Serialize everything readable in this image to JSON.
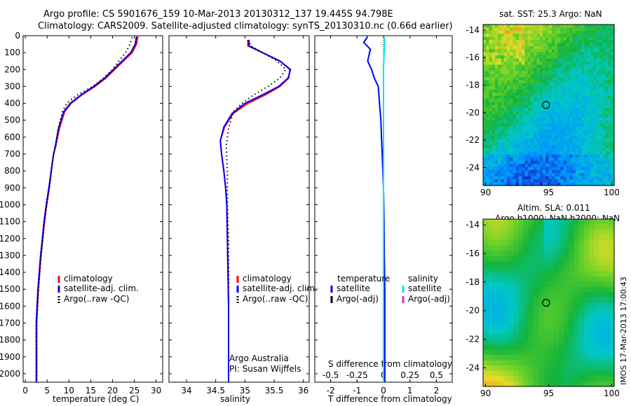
{
  "header": {
    "title_line1": "Argo profile: CS 5901676_159 10-Mar-2013 20130312_137 19.445S 94.798E",
    "title_line2": "Climatology: CARS2009. Satellite-adjusted climatology: synTS_20130310.nc (0.66d earlier)"
  },
  "side_stamp": "IMOS 17-Mar-2013 17:00:43",
  "chart_data": [
    {
      "id": "temperature",
      "type": "line",
      "xlabel": "temperature (deg C)",
      "ylabel": "",
      "xlim": [
        -0.5,
        31.5
      ],
      "ylim": [
        0,
        2050
      ],
      "y_inverted": true,
      "xticks": [
        0,
        5,
        10,
        15,
        20,
        25,
        30
      ],
      "yticks": [
        0,
        100,
        200,
        300,
        400,
        500,
        600,
        700,
        800,
        900,
        1000,
        1100,
        1200,
        1300,
        1400,
        1500,
        1600,
        1700,
        1800,
        1900,
        2000
      ],
      "legend": [
        "climatology",
        "satellite-adj. clim.",
        "Argo(..raw -QC)"
      ],
      "series": [
        {
          "name": "climatology",
          "color": "#ff0000",
          "style": "solid",
          "x": [
            25.8,
            25.5,
            24.5,
            22.5,
            20.5,
            18.5,
            16.0,
            13.0,
            10.5,
            9.0,
            7.8,
            7.0,
            6.5,
            6.2,
            5.5,
            4.9,
            4.4,
            4.0,
            3.6,
            3.3,
            3.0,
            2.8,
            2.6,
            2.6
          ],
          "y": [
            5,
            50,
            100,
            150,
            200,
            250,
            300,
            350,
            400,
            450,
            550,
            650,
            700,
            750,
            900,
            1000,
            1100,
            1200,
            1300,
            1400,
            1500,
            1600,
            1700,
            2050
          ]
        },
        {
          "name": "satellite-adj. clim.",
          "color": "#0000ff",
          "style": "solid",
          "x": [
            25.5,
            25.2,
            24.2,
            22.2,
            20.2,
            18.2,
            15.7,
            12.8,
            10.3,
            8.8,
            7.6,
            6.9,
            6.5,
            6.2,
            5.4,
            4.8,
            4.3,
            3.9,
            3.5,
            3.2,
            2.9,
            2.7,
            2.5,
            2.5
          ],
          "y": [
            5,
            50,
            100,
            150,
            200,
            250,
            300,
            350,
            400,
            450,
            550,
            650,
            700,
            750,
            900,
            1000,
            1100,
            1200,
            1300,
            1400,
            1500,
            1600,
            1700,
            2050
          ]
        },
        {
          "name": "Argo(..raw -QC)",
          "color": "#000000",
          "style": "dotted",
          "x": [
            24.5,
            24.0,
            23.0,
            21.5,
            20.0,
            18.0,
            15.5,
            12.0,
            9.5,
            8.5,
            7.5,
            7.0,
            6.5,
            6.2,
            5.5,
            4.9,
            4.4,
            4.0,
            3.6,
            3.3,
            3.0,
            2.8,
            2.6,
            2.6
          ],
          "y": [
            10,
            50,
            100,
            150,
            200,
            250,
            300,
            350,
            400,
            450,
            550,
            650,
            700,
            750,
            900,
            1000,
            1100,
            1200,
            1300,
            1400,
            1500,
            1600,
            1700,
            2050
          ]
        }
      ]
    },
    {
      "id": "salinity",
      "type": "line",
      "xlabel": "salinity",
      "ylabel": "",
      "xlim": [
        33.7,
        36.1
      ],
      "ylim": [
        0,
        2050
      ],
      "y_inverted": true,
      "xticks": [
        34,
        34.5,
        35,
        35.5,
        36
      ],
      "legend": [
        "climatology",
        "satellite-adj. clim.",
        "Argo(..raw -QC)"
      ],
      "note_lines": [
        "Argo Australia",
        "PI: Susan Wijffels"
      ],
      "series": [
        {
          "name": "climatology",
          "color": "#ff0000",
          "style": "solid",
          "x": [
            35.05,
            35.05,
            35.3,
            35.6,
            35.77,
            35.75,
            35.6,
            35.35,
            35.05,
            34.8,
            34.65,
            34.58,
            34.6,
            34.64,
            34.67,
            34.69,
            34.7,
            34.71,
            34.72,
            34.72,
            34.72
          ],
          "y": [
            25,
            60,
            100,
            150,
            200,
            250,
            300,
            350,
            400,
            460,
            540,
            620,
            700,
            800,
            900,
            1000,
            1200,
            1400,
            1600,
            1800,
            2050
          ]
        },
        {
          "name": "satellite-adj. clim.",
          "color": "#0000ff",
          "style": "solid",
          "x": [
            35.07,
            35.07,
            35.3,
            35.6,
            35.78,
            35.74,
            35.58,
            35.3,
            35.0,
            34.78,
            34.64,
            34.58,
            34.6,
            34.64,
            34.67,
            34.69,
            34.7,
            34.71,
            34.72,
            34.72,
            34.72
          ],
          "y": [
            25,
            60,
            100,
            150,
            200,
            250,
            300,
            350,
            400,
            460,
            540,
            620,
            700,
            800,
            900,
            1000,
            1200,
            1400,
            1600,
            1800,
            2050
          ]
        },
        {
          "name": "Argo(..raw -QC)",
          "color": "#000000",
          "style": "dotted",
          "x": [
            35.05,
            35.1,
            35.3,
            35.55,
            35.7,
            35.6,
            35.4,
            35.15,
            34.95,
            34.8,
            34.72,
            34.68,
            34.7,
            34.7,
            34.72,
            34.72,
            34.72
          ],
          "y": [
            25,
            60,
            100,
            150,
            200,
            250,
            300,
            350,
            400,
            450,
            550,
            650,
            800,
            1000,
            1200,
            1400,
            1500
          ]
        }
      ]
    },
    {
      "id": "difference",
      "type": "line",
      "xlabel": "T difference from climatology",
      "x2label": "S difference from climatology",
      "ylabel": "",
      "xlim": [
        -2.6,
        2.6
      ],
      "x2lim": [
        -0.65,
        0.65
      ],
      "ylim": [
        0,
        2050
      ],
      "y_inverted": true,
      "xticks": [
        -2,
        -1,
        0,
        1,
        2
      ],
      "x2ticks": [
        -0.5,
        -0.25,
        0,
        0.25,
        0.5
      ],
      "legend_temperature_title": "temperature",
      "legend_salinity_title": "salinity",
      "legend": [
        "satellite",
        "Argo(-adj)",
        "satellite",
        "Argo(-adj)"
      ],
      "series": [
        {
          "name": "temperature satellite",
          "color": "#0000ff",
          "style": "solid",
          "x": [
            -0.6,
            -0.75,
            -0.5,
            -0.6,
            -0.45,
            -0.35,
            -0.2,
            -0.15,
            -0.1,
            -0.05,
            0.0,
            0.02,
            0.03,
            0.05,
            0.05
          ],
          "y": [
            5,
            40,
            80,
            150,
            200,
            250,
            300,
            400,
            500,
            700,
            900,
            1100,
            1300,
            1500,
            2050
          ]
        },
        {
          "name": "salinity satellite",
          "color": "#00e5ee",
          "style": "solid",
          "x": [
            0.02,
            0.05,
            0.02,
            0.0,
            0.0,
            0.0,
            0.0,
            0.0
          ],
          "y": [
            5,
            40,
            100,
            200,
            400,
            800,
            1500,
            2050
          ]
        }
      ]
    }
  ],
  "maps": [
    {
      "id": "sst-map",
      "title_line1": "sat. SST: 25.3 Argo: NaN",
      "title_line2": "",
      "xlim": [
        89.8,
        100.2
      ],
      "ylim": [
        -25.3,
        -13.6
      ],
      "xticks": [
        90,
        95,
        100
      ],
      "yticks": [
        -14,
        -16,
        -18,
        -20,
        -22,
        -24
      ],
      "marker": [
        94.8,
        -19.45
      ]
    },
    {
      "id": "sla-map",
      "title_line1": "Altim. SLA: 0.011",
      "title_line2": "Argo h1000: NaN h2000: NaN",
      "xlim": [
        89.8,
        100.2
      ],
      "ylim": [
        -25.3,
        -13.6
      ],
      "xticks": [
        90,
        95,
        100
      ],
      "yticks": [
        -14,
        -16,
        -18,
        -20,
        -22,
        -24
      ],
      "marker": [
        94.8,
        -19.45
      ]
    }
  ]
}
